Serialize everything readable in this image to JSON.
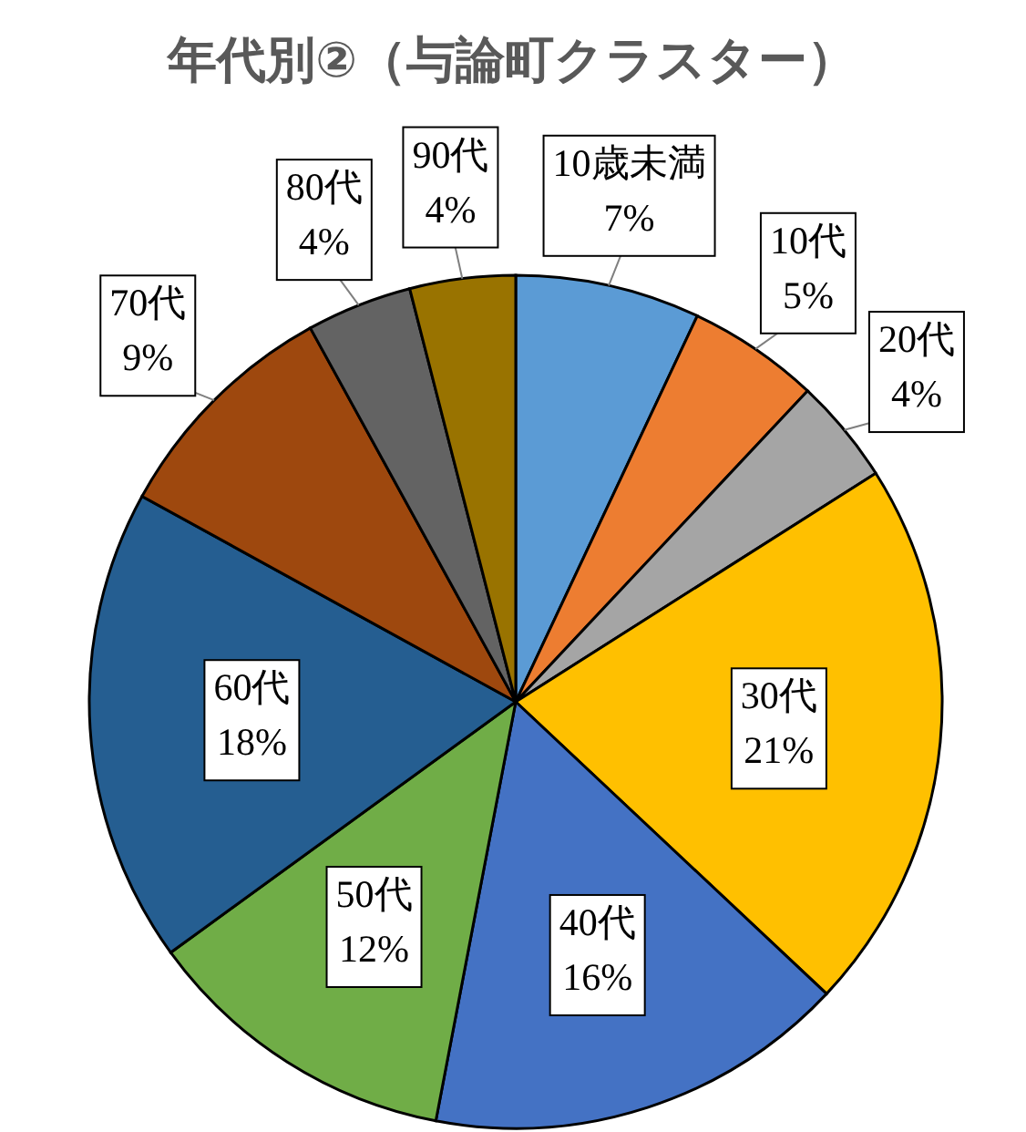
{
  "chart_data": {
    "type": "pie",
    "title": "年代別②（与論町クラスター）",
    "categories": [
      "10歳未満",
      "10代",
      "20代",
      "30代",
      "40代",
      "50代",
      "60代",
      "70代",
      "80代",
      "90代"
    ],
    "values": [
      7,
      5,
      4,
      21,
      16,
      12,
      18,
      9,
      4,
      4
    ],
    "value_labels": [
      "7%",
      "5%",
      "4%",
      "21%",
      "16%",
      "12%",
      "18%",
      "9%",
      "4%",
      "4%"
    ],
    "colors": [
      "#5b9bd5",
      "#ed7d31",
      "#a5a5a5",
      "#ffc000",
      "#4472c4",
      "#70ad47",
      "#255e91",
      "#9e480e",
      "#636363",
      "#997300"
    ]
  }
}
